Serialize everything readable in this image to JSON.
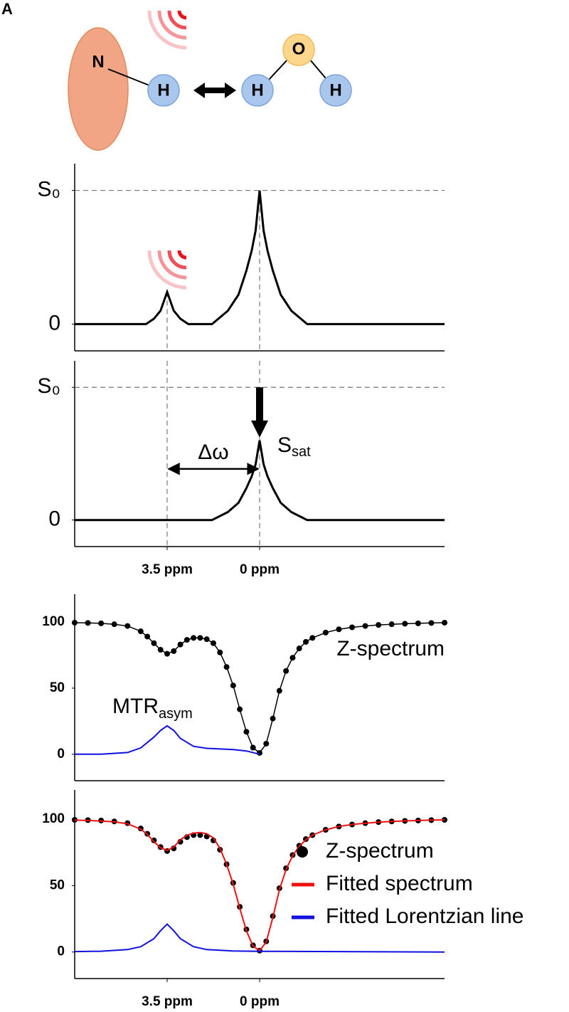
{
  "panel_label": "A",
  "diagram": {
    "atoms": [
      "N",
      "H",
      "H",
      "O",
      "H"
    ]
  },
  "chart_data": [
    {
      "type": "line",
      "xlim": [
        7,
        -7
      ],
      "ylim": [
        -0.2,
        1.2
      ],
      "yticks": [
        {
          "value": 1,
          "label": "S₀"
        },
        0
      ],
      "hline": 1,
      "vlines": [
        3.5,
        0
      ],
      "series": [
        {
          "color": "#000000",
          "style": "line",
          "x": [
            7,
            4.3,
            4,
            3.75,
            3.5,
            3.25,
            3,
            2.7,
            1.8,
            1.2,
            0.8,
            0.5,
            0.3,
            0.15,
            0,
            -0.15,
            -0.3,
            -0.5,
            -0.8,
            -1.2,
            -1.8,
            -7
          ],
          "values": [
            0,
            0,
            0.04,
            0.1,
            0.24,
            0.1,
            0.04,
            0,
            0,
            0.1,
            0.22,
            0.4,
            0.55,
            0.7,
            1,
            0.7,
            0.55,
            0.4,
            0.22,
            0.1,
            0,
            0
          ]
        }
      ]
    },
    {
      "type": "line",
      "xlim": [
        7,
        -7
      ],
      "ylim": [
        -0.2,
        1.2
      ],
      "yticks": [
        {
          "value": 1,
          "label": "S₀"
        },
        0
      ],
      "xticks": [
        {
          "value": 3.5,
          "label": "3.5 ppm"
        },
        {
          "value": 0,
          "label": "0 ppm"
        }
      ],
      "hline": 1,
      "vlines": [
        3.5,
        0
      ],
      "annotations": {
        "delta": "Δω",
        "ssat": {
          "text": "S",
          "subscript": "sat"
        }
      },
      "series": [
        {
          "color": "#000000",
          "style": "line",
          "x": [
            7,
            4.3,
            4,
            3.75,
            3.5,
            3.25,
            3,
            2.7,
            1.8,
            1.2,
            0.8,
            0.5,
            0.3,
            0.15,
            0,
            -0.15,
            -0.3,
            -0.5,
            -0.8,
            -1.2,
            -1.8,
            -7
          ],
          "values": [
            0,
            0,
            0,
            0,
            0,
            0,
            0,
            0,
            0,
            0.06,
            0.13,
            0.24,
            0.33,
            0.42,
            0.6,
            0.42,
            0.33,
            0.24,
            0.13,
            0.06,
            0,
            0
          ]
        }
      ]
    },
    {
      "type": "line",
      "xlim": [
        7,
        -7
      ],
      "ylim": [
        -20,
        121
      ],
      "yticks": [
        100,
        50,
        0
      ],
      "annotations": {
        "zspec": "Z-spectrum",
        "mtr": {
          "text": "MTR",
          "subscript": "asym"
        }
      },
      "series": [
        {
          "color": "#000000",
          "style": "line+dots",
          "x": [
            7,
            6.5,
            6,
            5.5,
            5,
            4.5,
            4.25,
            4,
            3.75,
            3.5,
            3.25,
            3,
            2.75,
            2.5,
            2.25,
            2,
            1.75,
            1.5,
            1.25,
            1,
            0.75,
            0.5,
            0.25,
            0,
            -0.25,
            -0.5,
            -0.75,
            -1,
            -1.25,
            -1.5,
            -1.75,
            -2,
            -2.5,
            -3,
            -3.5,
            -4,
            -4.5,
            -5,
            -5.5,
            -6,
            -6.5,
            -7
          ],
          "values": [
            99.5,
            99.3,
            99,
            98.3,
            97,
            93,
            89,
            84,
            79,
            76,
            78,
            83,
            86.5,
            88,
            88,
            87,
            84,
            77,
            66,
            52,
            34,
            17,
            5,
            1,
            8,
            27,
            48,
            63,
            73,
            80,
            85,
            88,
            92,
            94.5,
            96,
            97,
            97.8,
            98.3,
            98.7,
            99,
            99.3,
            99.5
          ]
        },
        {
          "color": "#1010e0",
          "style": "line",
          "x": [
            7,
            6,
            5,
            4.5,
            4,
            3.75,
            3.5,
            3.25,
            3,
            2.5,
            2,
            1.5,
            1,
            0.5,
            0
          ],
          "values": [
            0,
            0,
            1.3,
            4.8,
            13,
            18,
            21.5,
            18,
            12,
            6,
            4.5,
            4,
            3.5,
            2.5,
            0
          ]
        }
      ]
    },
    {
      "type": "line",
      "xlim": [
        7,
        -7
      ],
      "ylim": [
        -20,
        122
      ],
      "yticks": [
        100,
        50,
        0
      ],
      "xticks": [
        {
          "value": 3.5,
          "label": "3.5 ppm"
        },
        {
          "value": 0,
          "label": "0 ppm"
        }
      ],
      "series": [
        {
          "name": "Z-spectrum",
          "color": "#000000",
          "style": "dots",
          "x": [
            7,
            6.5,
            6,
            5.5,
            5,
            4.5,
            4.25,
            4,
            3.75,
            3.5,
            3.25,
            3,
            2.75,
            2.5,
            2.25,
            2,
            1.75,
            1.5,
            1.25,
            1,
            0.75,
            0.5,
            0.25,
            0,
            -0.25,
            -0.5,
            -0.75,
            -1,
            -1.25,
            -1.5,
            -1.75,
            -2,
            -2.5,
            -3,
            -3.5,
            -4,
            -4.5,
            -5,
            -5.5,
            -6,
            -6.5,
            -7
          ],
          "values": [
            99.5,
            99.3,
            99,
            98.3,
            97,
            93,
            89,
            84,
            79,
            76,
            78,
            83,
            86.5,
            88,
            88,
            87,
            84,
            77,
            66,
            52,
            34,
            17,
            5,
            1,
            8,
            27,
            48,
            63,
            73,
            80,
            85,
            88,
            92,
            94.5,
            96,
            97,
            97.8,
            98.3,
            98.7,
            99,
            99.3,
            99.5
          ]
        },
        {
          "name": "Fitted spectrum",
          "color": "#ee1111",
          "style": "line",
          "x": [
            7,
            6.5,
            6,
            5.5,
            5,
            4.5,
            4.25,
            4,
            3.75,
            3.5,
            3.25,
            3,
            2.75,
            2.5,
            2.25,
            2,
            1.75,
            1.5,
            1.25,
            1,
            0.75,
            0.5,
            0.25,
            0,
            -0.25,
            -0.5,
            -0.75,
            -1,
            -1.25,
            -1.5,
            -1.75,
            -2,
            -2.5,
            -3,
            -3.5,
            -4,
            -4.5,
            -5,
            -5.5,
            -6,
            -6.5,
            -7
          ],
          "values": [
            99.3,
            99,
            98.6,
            98,
            96.5,
            92.5,
            88.5,
            83,
            78.5,
            76.5,
            79,
            84.5,
            88,
            89.5,
            90,
            89,
            86,
            78,
            66,
            51,
            33,
            16,
            4.5,
            1,
            7.5,
            26,
            47,
            62,
            72.5,
            79.5,
            84.5,
            88,
            92,
            94.5,
            96,
            97,
            97.8,
            98.3,
            98.7,
            99,
            99.3,
            99.5
          ]
        },
        {
          "name": "Fitted Lorentzian line",
          "color": "#1010e0",
          "style": "line",
          "x": [
            7,
            6,
            5,
            4.5,
            4,
            3.75,
            3.5,
            3.25,
            3,
            2.5,
            2,
            1,
            0,
            -7
          ],
          "values": [
            0.3,
            0.6,
            1.8,
            4,
            10,
            16,
            21,
            16,
            10,
            4,
            1.8,
            0.8,
            0.5,
            0
          ]
        }
      ]
    }
  ]
}
